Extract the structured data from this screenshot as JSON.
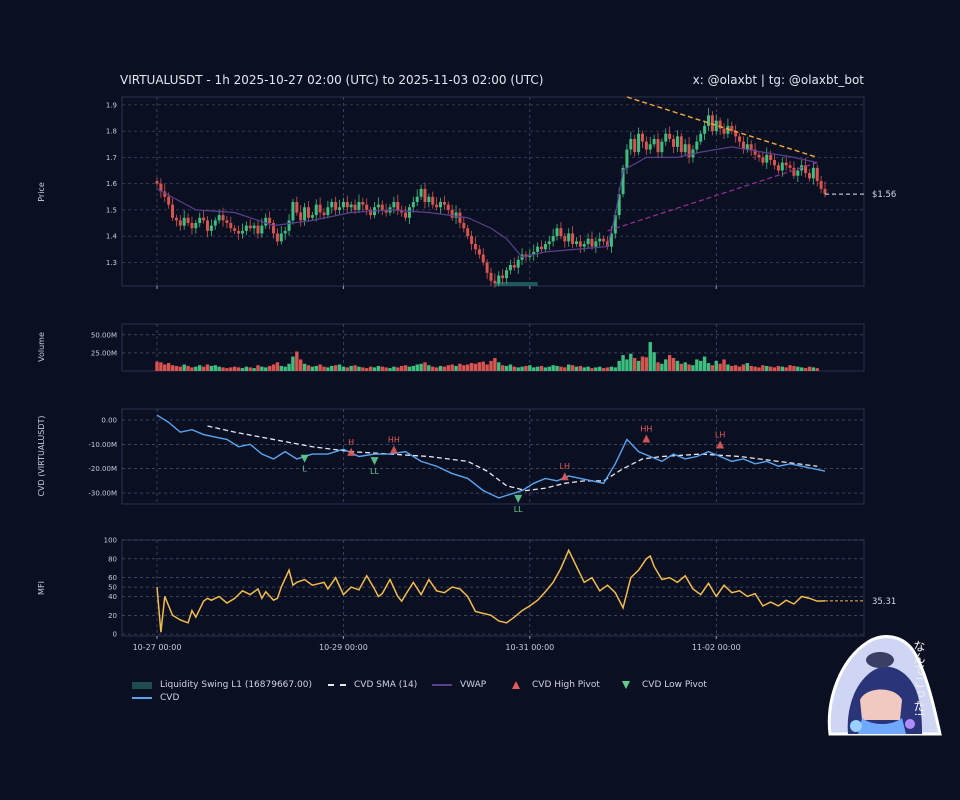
{
  "header": {
    "title": "VIRTUALUSDT - 1h 2025-10-27 02:00 (UTC) to 2025-11-03 02:00 (UTC)",
    "credit": "x: @olaxbt | tg: @olaxbt_bot"
  },
  "colors": {
    "background": "#0b0f22",
    "up": "#3fbf7f",
    "down": "#d9534f",
    "vwap": "#5b3f8c",
    "cvd": "#5aa4f0",
    "cvd_sma": "#e8e8ee",
    "mfi": "#f2bb4d",
    "trend_down": "#f2a93b",
    "trend_up": "#9b2f9b",
    "liquidity": "#1f5a5a"
  },
  "chart_data": [
    {
      "type": "candlestick",
      "panel": "price",
      "ylabel": "Price",
      "yticks": [
        1.3,
        1.4,
        1.5,
        1.6,
        1.7,
        1.8,
        1.9
      ],
      "ylim": [
        1.21,
        1.93
      ],
      "x_range": [
        0,
        172
      ],
      "last_price_label": "$1.56",
      "close": [
        1.6,
        1.57,
        1.55,
        1.52,
        1.47,
        1.46,
        1.44,
        1.47,
        1.45,
        1.43,
        1.45,
        1.47,
        1.46,
        1.42,
        1.44,
        1.46,
        1.48,
        1.46,
        1.45,
        1.43,
        1.42,
        1.41,
        1.42,
        1.44,
        1.43,
        1.44,
        1.41,
        1.44,
        1.47,
        1.45,
        1.41,
        1.38,
        1.41,
        1.42,
        1.46,
        1.53,
        1.49,
        1.46,
        1.51,
        1.47,
        1.48,
        1.52,
        1.49,
        1.48,
        1.51,
        1.53,
        1.5,
        1.51,
        1.53,
        1.51,
        1.52,
        1.5,
        1.53,
        1.52,
        1.5,
        1.48,
        1.51,
        1.52,
        1.5,
        1.49,
        1.51,
        1.53,
        1.5,
        1.49,
        1.47,
        1.51,
        1.53,
        1.55,
        1.58,
        1.53,
        1.55,
        1.52,
        1.51,
        1.53,
        1.52,
        1.5,
        1.47,
        1.49,
        1.45,
        1.43,
        1.4,
        1.37,
        1.35,
        1.33,
        1.3,
        1.26,
        1.23,
        1.22,
        1.25,
        1.24,
        1.27,
        1.29,
        1.28,
        1.31,
        1.33,
        1.32,
        1.33,
        1.34,
        1.36,
        1.35,
        1.37,
        1.38,
        1.4,
        1.43,
        1.4,
        1.38,
        1.41,
        1.37,
        1.38,
        1.36,
        1.37,
        1.39,
        1.36,
        1.38,
        1.39,
        1.38,
        1.36,
        1.41,
        1.48,
        1.56,
        1.66,
        1.73,
        1.77,
        1.72,
        1.79,
        1.76,
        1.73,
        1.75,
        1.77,
        1.72,
        1.76,
        1.79,
        1.77,
        1.74,
        1.78,
        1.72,
        1.75,
        1.7,
        1.73,
        1.76,
        1.79,
        1.82,
        1.86,
        1.8,
        1.84,
        1.81,
        1.79,
        1.82,
        1.8,
        1.78,
        1.76,
        1.73,
        1.75,
        1.73,
        1.71,
        1.7,
        1.68,
        1.71,
        1.69,
        1.67,
        1.65,
        1.68,
        1.67,
        1.66,
        1.63,
        1.65,
        1.67,
        1.64,
        1.62,
        1.66,
        1.61,
        1.58,
        1.56
      ]
    },
    {
      "type": "line",
      "panel": "price",
      "name": "VWAP",
      "x": [
        0,
        10,
        20,
        30,
        40,
        50,
        60,
        70,
        80,
        86,
        90,
        94,
        100,
        108,
        116,
        118,
        120,
        126,
        134,
        140,
        148,
        156,
        164,
        170
      ],
      "y": [
        1.58,
        1.5,
        1.49,
        1.44,
        1.46,
        1.49,
        1.5,
        1.49,
        1.47,
        1.43,
        1.39,
        1.32,
        1.34,
        1.35,
        1.36,
        1.48,
        1.65,
        1.7,
        1.7,
        1.72,
        1.74,
        1.72,
        1.7,
        1.68
      ]
    },
    {
      "type": "line",
      "panel": "volume",
      "ylabel": "Volume",
      "yticks": [
        25000000,
        50000000
      ],
      "ytick_labels": [
        "25.00M",
        "50.00M"
      ],
      "ylim": [
        0,
        65000000
      ],
      "bars_note": "hourly volume bars, colored by candle direction",
      "volume_millions": [
        13,
        12,
        9,
        11,
        8,
        7,
        6,
        9,
        7,
        5,
        6,
        8,
        6,
        9,
        7,
        8,
        6,
        5,
        4,
        5,
        6,
        5,
        4,
        6,
        5,
        4,
        8,
        6,
        5,
        7,
        9,
        12,
        7,
        6,
        10,
        20,
        27,
        16,
        10,
        8,
        6,
        7,
        9,
        6,
        5,
        7,
        8,
        9,
        6,
        5,
        7,
        8,
        6,
        5,
        4,
        6,
        5,
        7,
        6,
        5,
        4,
        6,
        5,
        7,
        8,
        6,
        7,
        9,
        10,
        12,
        8,
        6,
        5,
        7,
        6,
        8,
        9,
        7,
        10,
        8,
        9,
        11,
        10,
        12,
        13,
        9,
        14,
        18,
        12,
        8,
        7,
        9,
        6,
        5,
        6,
        7,
        8,
        5,
        6,
        7,
        5,
        6,
        8,
        7,
        6,
        5,
        9,
        8,
        6,
        7,
        5,
        6,
        4,
        5,
        6,
        4,
        5,
        6,
        5,
        14,
        22,
        16,
        24,
        18,
        14,
        20,
        19,
        40,
        26,
        12,
        10,
        16,
        22,
        18,
        14,
        10,
        12,
        9,
        8,
        16,
        14,
        20,
        11,
        8,
        14,
        10,
        16,
        9,
        7,
        8,
        6,
        9,
        11,
        7,
        6,
        5,
        8,
        7,
        6,
        5,
        7,
        6,
        5,
        8,
        7,
        6,
        5,
        4,
        6,
        5,
        4
      ]
    },
    {
      "type": "line",
      "panel": "cvd",
      "ylabel": "CVD (VIRTUALUSDT)",
      "yticks": [
        0,
        -10000000,
        -20000000,
        -30000000
      ],
      "ytick_labels": [
        "0.00",
        "-10.00M",
        "-20.00M",
        "-30.00M"
      ],
      "ylim": [
        -34500000,
        4500000
      ],
      "series": [
        {
          "name": "CVD",
          "x": [
            0,
            3,
            6,
            9,
            12,
            15,
            18,
            21,
            24,
            27,
            30,
            33,
            36,
            40,
            44,
            48,
            52,
            56,
            60,
            64,
            68,
            72,
            76,
            80,
            84,
            88,
            92,
            94,
            97,
            100,
            103,
            106,
            109,
            112,
            115,
            118,
            121,
            124,
            127,
            130,
            133,
            136,
            139,
            142,
            145,
            148,
            151,
            154,
            157,
            160,
            163,
            166,
            169,
            172
          ],
          "y": [
            2,
            -1,
            -5,
            -4,
            -6,
            -7,
            -8,
            -11,
            -10,
            -14,
            -16,
            -13,
            -16,
            -14,
            -14,
            -12,
            -15,
            -14,
            -14,
            -13,
            -17,
            -19,
            -22,
            -24,
            -29,
            -32,
            -30,
            -29,
            -26,
            -24,
            -25,
            -23,
            -24,
            -25,
            -26,
            -18,
            -8,
            -13,
            -15,
            -17,
            -14,
            -16,
            -15,
            -13,
            -15,
            -17,
            -16,
            -18,
            -17,
            -19,
            -18,
            -19,
            -20,
            -21
          ]
        },
        {
          "name": "CVD SMA (14)",
          "x": [
            13,
            20,
            30,
            40,
            50,
            60,
            70,
            80,
            85,
            90,
            95,
            100,
            105,
            110,
            115,
            120,
            125,
            130,
            140,
            150,
            160,
            170
          ],
          "y": [
            -2.5,
            -5,
            -8,
            -11,
            -13,
            -14,
            -15,
            -17,
            -21,
            -27,
            -29,
            -28,
            -26,
            -25,
            -25,
            -20,
            -16,
            -15,
            -14,
            -15,
            -17,
            -19
          ]
        }
      ],
      "units": "millions",
      "pivots": [
        {
          "label": "L",
          "kind": "low",
          "x": 38,
          "y": -15.5
        },
        {
          "label": "H",
          "kind": "high",
          "x": 50,
          "y": -13.5
        },
        {
          "label": "LL",
          "kind": "low",
          "x": 56,
          "y": -16.5
        },
        {
          "label": "HH",
          "kind": "high",
          "x": 61,
          "y": -12.5
        },
        {
          "label": "LL",
          "kind": "low",
          "x": 93,
          "y": -32
        },
        {
          "label": "LH",
          "kind": "high",
          "x": 105,
          "y": -23.5
        },
        {
          "label": "HH",
          "kind": "high",
          "x": 126,
          "y": -8
        },
        {
          "label": "LH",
          "kind": "high",
          "x": 145,
          "y": -10.5
        }
      ]
    },
    {
      "type": "line",
      "panel": "mfi",
      "ylabel": "MFI",
      "yticks": [
        0,
        20,
        40,
        50,
        60,
        80,
        100
      ],
      "ylim": [
        -2,
        100
      ],
      "last_value_label": "35.31",
      "x_tick_labels": [
        "10-27 00:00",
        "10-29 00:00",
        "10-31 00:00",
        "11-02 00:00"
      ],
      "x_tick_positions": [
        0,
        48,
        96,
        144
      ],
      "name": "MFI",
      "x": [
        0,
        1,
        2,
        3,
        4,
        6,
        8,
        9,
        10,
        12,
        13,
        14,
        16,
        18,
        20,
        22,
        24,
        26,
        27,
        28,
        30,
        31,
        32,
        34,
        35,
        36,
        38,
        40,
        42,
        43,
        44,
        46,
        48,
        50,
        52,
        54,
        56,
        57,
        58,
        60,
        62,
        63,
        64,
        66,
        68,
        70,
        72,
        74,
        76,
        78,
        80,
        82,
        84,
        86,
        88,
        90,
        92,
        94,
        96,
        98,
        100,
        102,
        104,
        106,
        108,
        110,
        112,
        114,
        116,
        118,
        120,
        122,
        124,
        126,
        127,
        128,
        130,
        132,
        134,
        136,
        138,
        140,
        142,
        144,
        146,
        148,
        150,
        152,
        154,
        156,
        158,
        160,
        162,
        164,
        166,
        168,
        170,
        172
      ],
      "y": [
        50,
        2,
        40,
        30,
        20,
        15,
        12,
        25,
        18,
        35,
        38,
        36,
        40,
        33,
        38,
        46,
        42,
        48,
        38,
        45,
        36,
        38,
        50,
        68,
        52,
        55,
        58,
        52,
        54,
        55,
        48,
        60,
        42,
        50,
        47,
        62,
        48,
        40,
        43,
        58,
        40,
        35,
        42,
        55,
        42,
        58,
        46,
        44,
        50,
        48,
        40,
        24,
        22,
        20,
        14,
        12,
        18,
        25,
        30,
        36,
        45,
        55,
        70,
        89,
        72,
        55,
        60,
        46,
        52,
        44,
        28,
        60,
        68,
        80,
        83,
        72,
        58,
        60,
        55,
        62,
        48,
        42,
        54,
        40,
        52,
        44,
        46,
        40,
        43,
        30,
        34,
        30,
        36,
        32,
        40,
        38,
        35,
        35.31
      ]
    }
  ],
  "legend": {
    "items": [
      {
        "label": "Liquidity Swing L1 (16879667.00)",
        "kind": "patch"
      },
      {
        "label": "CVD SMA (14)",
        "kind": "dashed"
      },
      {
        "label": "VWAP",
        "kind": "line"
      },
      {
        "label": "CVD High Pivot",
        "kind": "up-triangle"
      },
      {
        "label": "CVD Low Pivot",
        "kind": "down-triangle"
      },
      {
        "label": "CVD",
        "kind": "line"
      }
    ]
  },
  "mascot": {
    "text": "なんてこった!"
  }
}
